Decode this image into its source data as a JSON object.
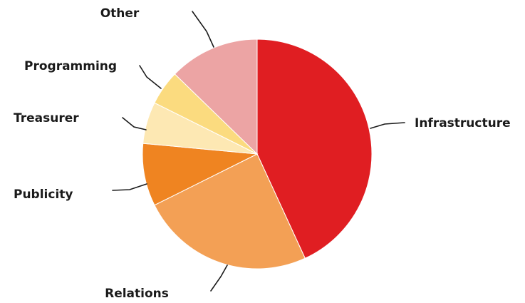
{
  "chart_data": {
    "type": "pie",
    "title": "",
    "slices": [
      {
        "label": "Infrastructure",
        "value": 44,
        "color": "#e01e22"
      },
      {
        "label": "Relations",
        "value": 25,
        "color": "#f3a055"
      },
      {
        "label": "Publicity",
        "value": 9,
        "color": "#ef8421"
      },
      {
        "label": "Treasurer",
        "value": 6,
        "color": "#fde8b3"
      },
      {
        "label": "Programming",
        "value": 5,
        "color": "#fbdb7f"
      },
      {
        "label": "Other",
        "value": 13,
        "color": "#eca4a4"
      }
    ],
    "start_angle": "12 o'clock",
    "direction": "clockwise",
    "legend": "none"
  }
}
